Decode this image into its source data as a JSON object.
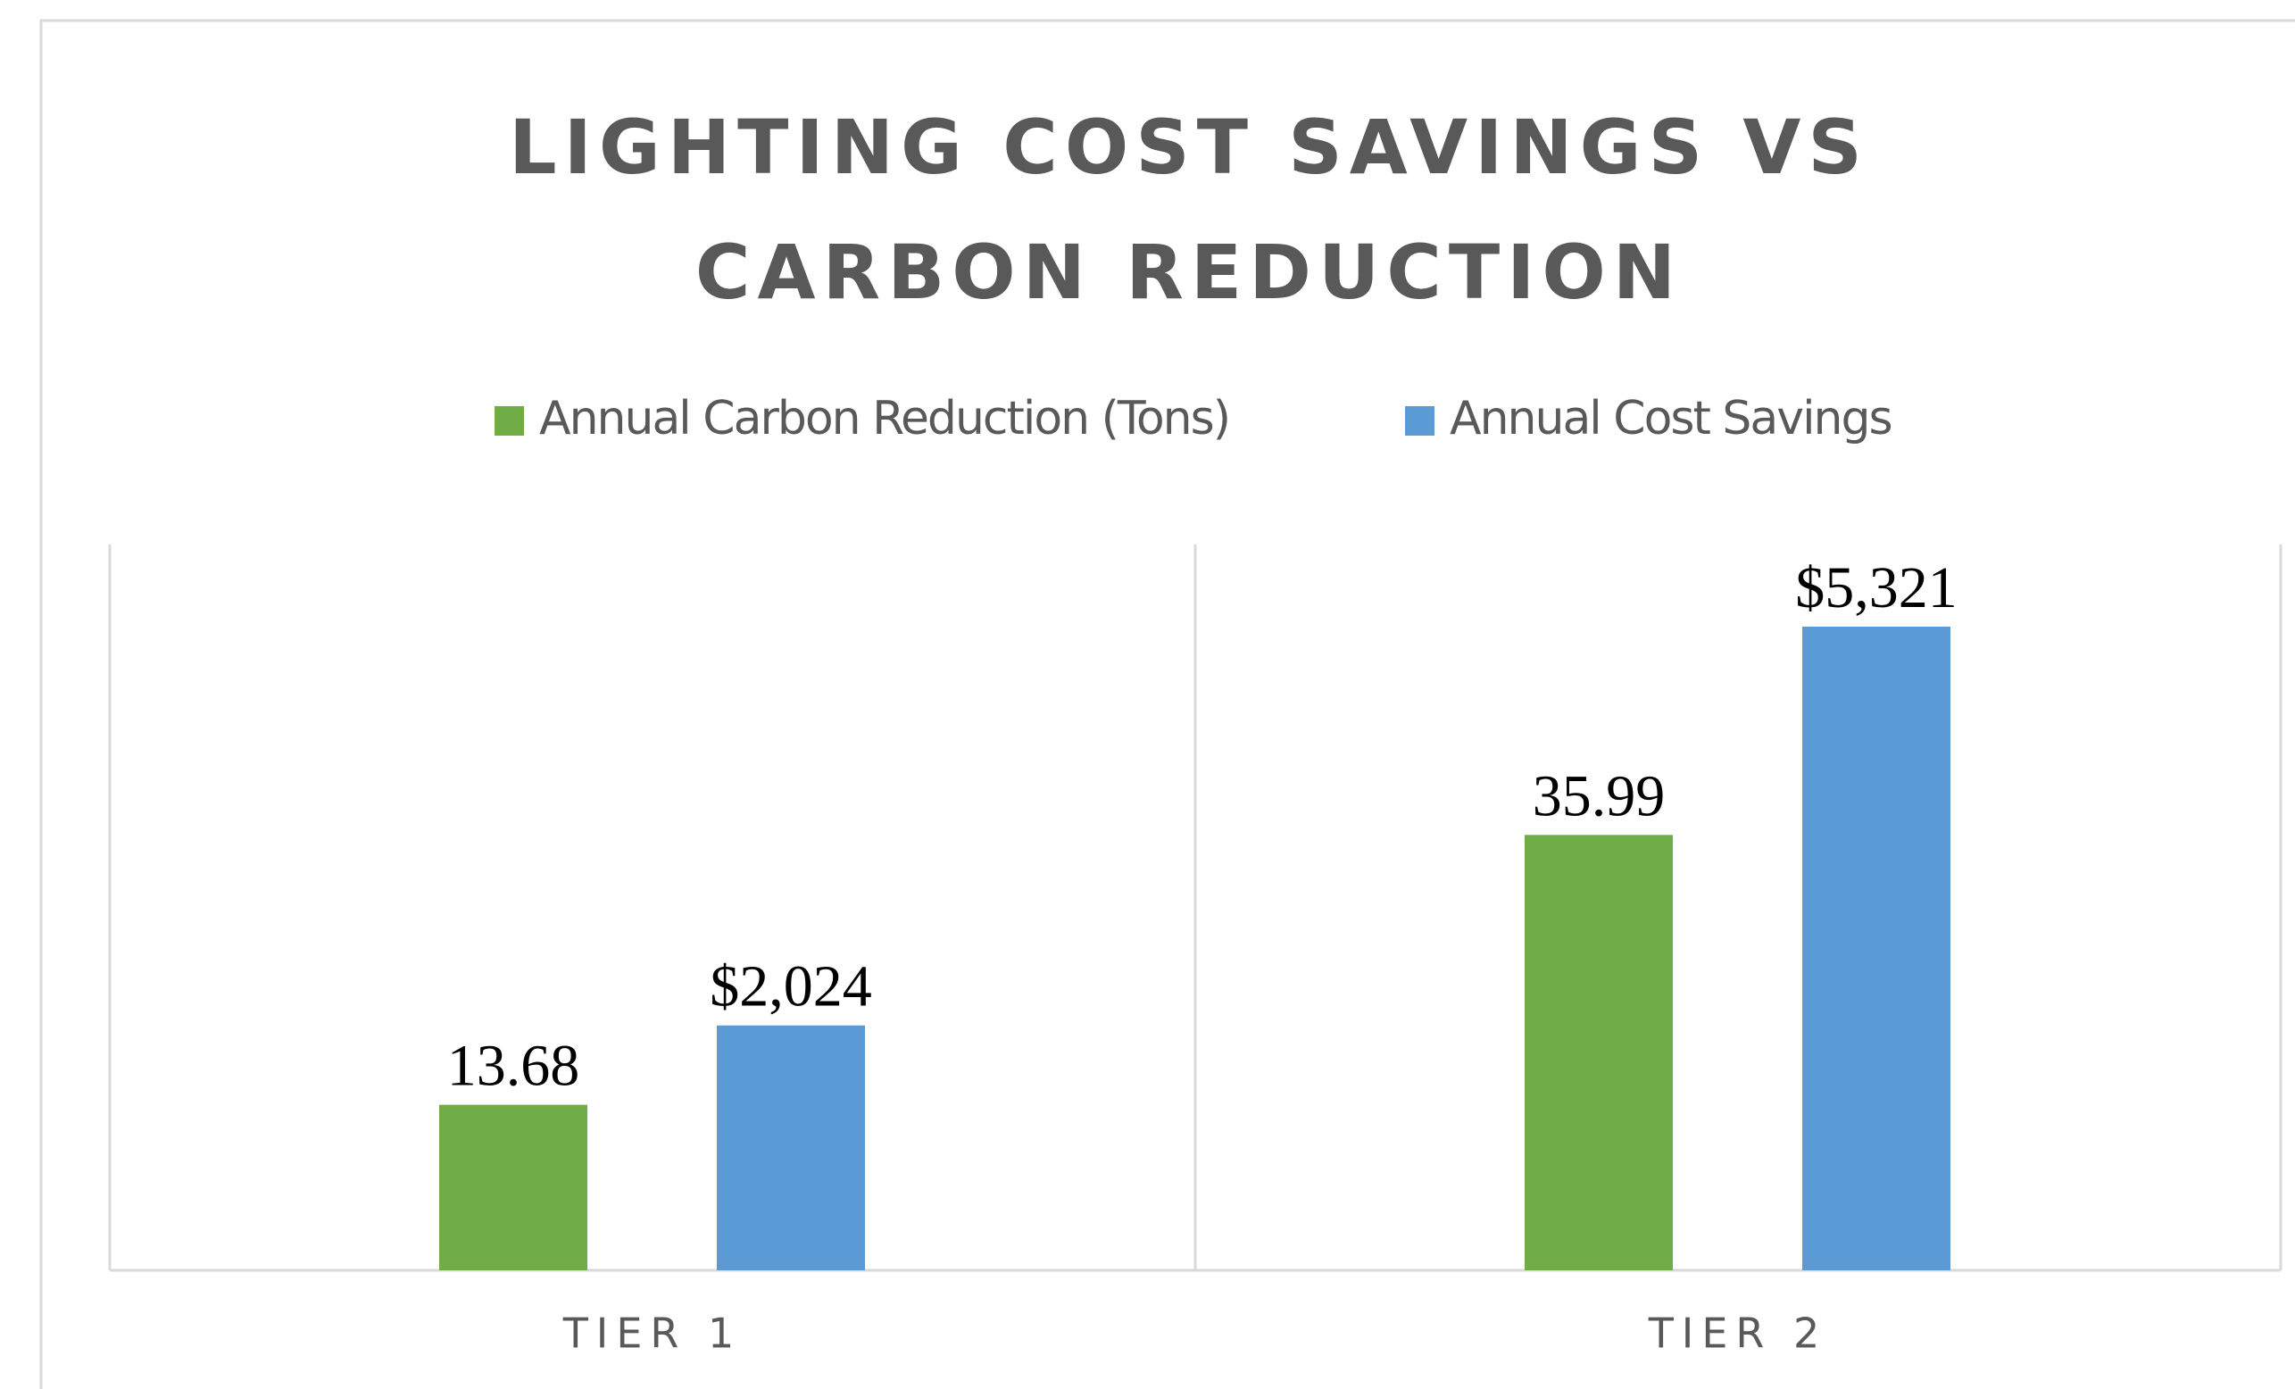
{
  "chart_data": {
    "type": "bar",
    "title": "LIGHTING COST SAVINGS VS CARBON REDUCTION",
    "categories": [
      "TIER 1",
      "TIER 2"
    ],
    "series": [
      {
        "name": "Annual Carbon Reduction (Tons)",
        "color": "#70ad47",
        "values": [
          13.68,
          35.99
        ]
      },
      {
        "name": "Annual Cost Savings",
        "color": "#5b9bd5",
        "axis": "y2",
        "values": [
          2024,
          5321
        ],
        "value_labels": [
          "$2,024",
          "$5,321"
        ]
      }
    ],
    "ylim": [
      0,
      60
    ],
    "y2lim": [
      0,
      6000
    ],
    "legend": "top"
  }
}
